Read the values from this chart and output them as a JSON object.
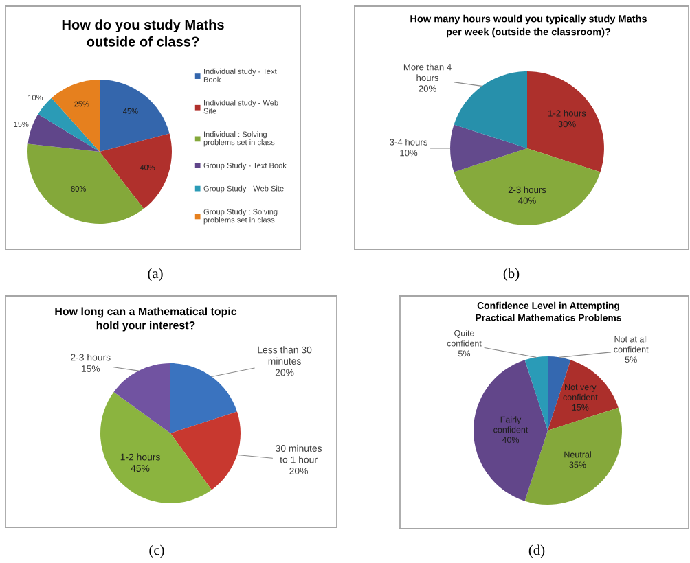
{
  "chart_data": [
    {
      "type": "pie",
      "title": "How do you study Maths outside of class?",
      "categories": [
        "Individual study - Text Book",
        "Individual study - Web Site",
        "Individual : Solving problems set in class",
        "Group Study - Text Book",
        "Group Study - Web Site",
        "Group Study : Solving problems set in class"
      ],
      "values": [
        45,
        40,
        80,
        15,
        10,
        25
      ],
      "value_labels": [
        "45%",
        "40%",
        "80%",
        "15%",
        "10%",
        "25%"
      ],
      "colors": [
        "#3466ac",
        "#b0302c",
        "#84a83a",
        "#60468a",
        "#2b9bb6",
        "#e6801e"
      ],
      "legend": "right",
      "annotations": [
        "(a)"
      ]
    },
    {
      "type": "pie",
      "title": "How many hours would you typically study Maths per week (outside the classroom)?",
      "categories": [
        "1-2 hours",
        "2-3 hours",
        "3-4 hours",
        "More than 4 hours"
      ],
      "values": [
        30,
        40,
        10,
        20
      ],
      "value_labels": [
        "30%",
        "40%",
        "10%",
        "20%"
      ],
      "colors": [
        "#ad302c",
        "#86aa3c",
        "#634a8c",
        "#2790ab"
      ],
      "annotations": [
        "(b)"
      ]
    },
    {
      "type": "pie",
      "title": "How long can a Mathematical topic hold your interest?",
      "categories": [
        "Less than 30 minutes",
        "30 minutes to 1 hour",
        "1-2 hours",
        "2-3 hours"
      ],
      "values": [
        20,
        20,
        45,
        15
      ],
      "value_labels": [
        "20%",
        "20%",
        "45%",
        "15%"
      ],
      "colors": [
        "#3a73bf",
        "#c8382f",
        "#8bb43f",
        "#7153a1"
      ],
      "annotations": [
        "(c)"
      ]
    },
    {
      "type": "pie",
      "title": "Confidence Level in Attempting Practical Mathematics Problems",
      "categories": [
        "Not at all confident",
        "Not very confident",
        "Neutral",
        "Fairly confident",
        "Quite confident"
      ],
      "values": [
        5,
        15,
        35,
        40,
        5
      ],
      "value_labels": [
        "5%",
        "15%",
        "35%",
        "40%",
        "5%"
      ],
      "colors": [
        "#3468b0",
        "#ac2f2b",
        "#85a83b",
        "#62468a",
        "#2a9bb7"
      ],
      "annotations": [
        "(d)"
      ]
    }
  ]
}
